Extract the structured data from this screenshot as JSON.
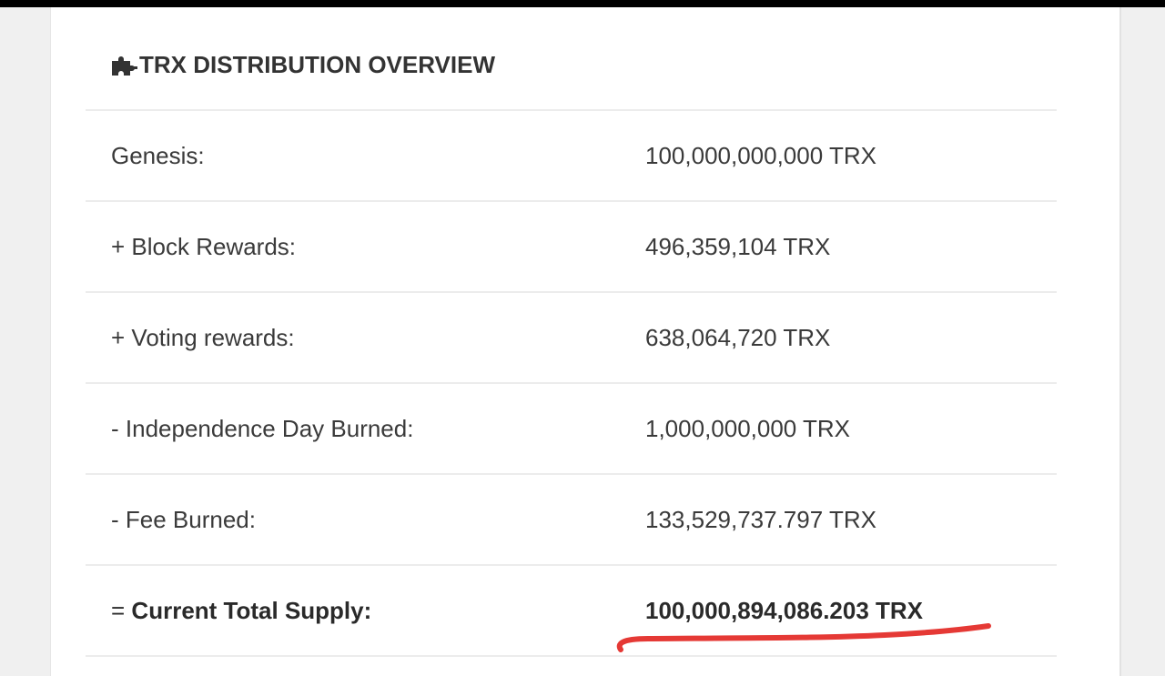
{
  "card": {
    "title": "TRX DISTRIBUTION OVERVIEW",
    "title_icon": "puzzle-icon"
  },
  "rows": [
    {
      "label": "Genesis:",
      "value": "100,000,000,000 TRX"
    },
    {
      "label": "+ Block Rewards:",
      "value": "496,359,104 TRX"
    },
    {
      "label": "+ Voting rewards:",
      "value": "638,064,720 TRX"
    },
    {
      "label": "- Independence Day Burned:",
      "value": "1,000,000,000 TRX"
    },
    {
      "label": "- Fee Burned:",
      "value": "133,529,737.797 TRX"
    }
  ],
  "total": {
    "prefix": "= ",
    "label": "Current Total Supply:",
    "value": "100,000,894,086.203 TRX"
  },
  "colors": {
    "text": "#3a3a3a",
    "divider": "#ececec",
    "annotation": "#e53935",
    "top_bar": "#000000"
  }
}
